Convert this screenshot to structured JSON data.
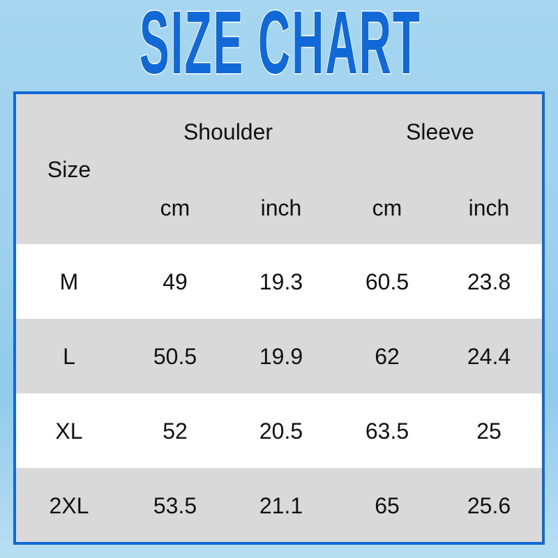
{
  "title": "SIZE CHART",
  "colors": {
    "accent": "#1169d8",
    "header_bg": "#d9d9d9",
    "row_alt": "#ffffff"
  },
  "header": {
    "size": "Size",
    "groups": [
      "Shoulder",
      "Sleeve"
    ],
    "units": [
      "cm",
      "inch",
      "cm",
      "inch"
    ]
  },
  "rows": [
    [
      "M",
      "49",
      "19.3",
      "60.5",
      "23.8"
    ],
    [
      "L",
      "50.5",
      "19.9",
      "62",
      "24.4"
    ],
    [
      "XL",
      "52",
      "20.5",
      "63.5",
      "25"
    ],
    [
      "2XL",
      "53.5",
      "21.1",
      "65",
      "25.6"
    ]
  ]
}
